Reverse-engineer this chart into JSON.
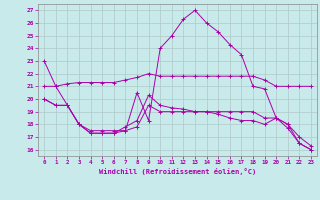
{
  "xlabel": "Windchill (Refroidissement éolien,°C)",
  "background_color": "#c8eaea",
  "grid_color": "#b0c8c8",
  "line_color": "#aa00aa",
  "spine_color": "#888888",
  "xlim": [
    -0.5,
    23.5
  ],
  "ylim": [
    15.5,
    27.5
  ],
  "yticks": [
    16,
    17,
    18,
    19,
    20,
    21,
    22,
    23,
    24,
    25,
    26,
    27
  ],
  "xticks": [
    0,
    1,
    2,
    3,
    4,
    5,
    6,
    7,
    8,
    9,
    10,
    11,
    12,
    13,
    14,
    15,
    16,
    17,
    18,
    19,
    20,
    21,
    22,
    23
  ],
  "series": [
    {
      "x": [
        0,
        1,
        2,
        3,
        4,
        5,
        6,
        7,
        8,
        9,
        10,
        11,
        12,
        13,
        14,
        15,
        16,
        17,
        18,
        19,
        20,
        21,
        22,
        23
      ],
      "y": [
        23.0,
        21.0,
        19.5,
        18.0,
        17.5,
        17.5,
        17.5,
        17.5,
        20.5,
        18.3,
        24.0,
        25.0,
        26.3,
        27.0,
        26.0,
        25.3,
        24.3,
        23.5,
        21.0,
        20.8,
        18.5,
        17.7,
        16.5,
        16.0
      ]
    },
    {
      "x": [
        0,
        1,
        2,
        3,
        4,
        5,
        6,
        7,
        8,
        9,
        10,
        11,
        12,
        13,
        14,
        15,
        16,
        17,
        18,
        19,
        20,
        21,
        22,
        23
      ],
      "y": [
        21.0,
        21.0,
        21.2,
        21.3,
        21.3,
        21.3,
        21.3,
        21.5,
        21.7,
        22.0,
        21.8,
        21.8,
        21.8,
        21.8,
        21.8,
        21.8,
        21.8,
        21.8,
        21.8,
        21.5,
        21.0,
        21.0,
        21.0,
        21.0
      ]
    },
    {
      "x": [
        0,
        1,
        2,
        3,
        4,
        5,
        6,
        7,
        8,
        9,
        10,
        11,
        12,
        13,
        14,
        15,
        16,
        17,
        18,
        19,
        20,
        21,
        22,
        23
      ],
      "y": [
        20.0,
        19.5,
        19.5,
        18.0,
        17.3,
        17.3,
        17.3,
        17.8,
        18.3,
        20.3,
        19.5,
        19.3,
        19.2,
        19.0,
        19.0,
        19.0,
        19.0,
        19.0,
        19.0,
        18.5,
        18.5,
        18.0,
        16.5,
        16.0
      ]
    },
    {
      "x": [
        0,
        1,
        2,
        3,
        4,
        5,
        6,
        7,
        8,
        9,
        10,
        11,
        12,
        13,
        14,
        15,
        16,
        17,
        18,
        19,
        20,
        21,
        22,
        23
      ],
      "y": [
        20.0,
        19.5,
        19.5,
        18.0,
        17.3,
        17.3,
        17.3,
        17.5,
        17.8,
        19.5,
        19.0,
        19.0,
        19.0,
        19.0,
        19.0,
        18.8,
        18.5,
        18.3,
        18.3,
        18.0,
        18.5,
        18.0,
        17.0,
        16.3
      ]
    }
  ]
}
